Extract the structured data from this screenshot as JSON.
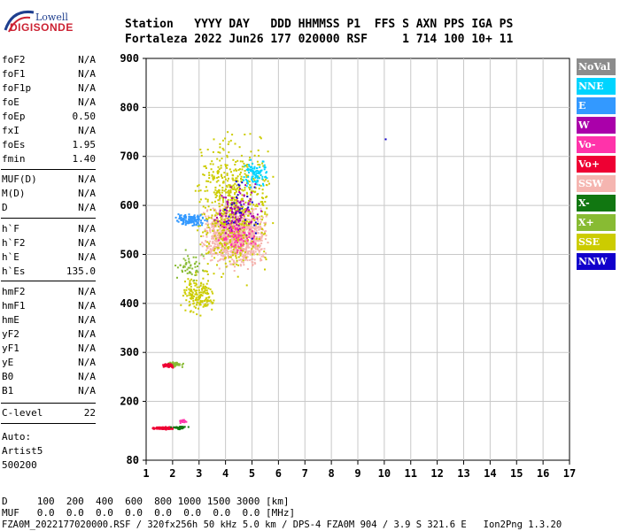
{
  "logo": {
    "top": "Lowell",
    "main": "DIGISONDE"
  },
  "header": {
    "line1": "Station   YYYY DAY   DDD HHMMSS P1  FFS S AXN PPS IGA PS",
    "line2": "Fortaleza 2022 Jun26 177 020000 RSF     1 714 100 10+ 11"
  },
  "params": [
    {
      "name": "foF2",
      "value": "N/A"
    },
    {
      "name": "foF1",
      "value": "N/A"
    },
    {
      "name": "foF1p",
      "value": "N/A"
    },
    {
      "name": "foE",
      "value": "N/A"
    },
    {
      "name": "foEp",
      "value": "0.50"
    },
    {
      "name": "fxI",
      "value": "N/A"
    },
    {
      "name": "foEs",
      "value": "1.95"
    },
    {
      "name": "fmin",
      "value": "1.40"
    },
    {
      "name": "MUF(D)",
      "value": "N/A"
    },
    {
      "name": "M(D)",
      "value": "N/A"
    },
    {
      "name": "D",
      "value": "N/A"
    },
    {
      "name": "h`F",
      "value": "N/A"
    },
    {
      "name": "h`F2",
      "value": "N/A"
    },
    {
      "name": "h`E",
      "value": "N/A"
    },
    {
      "name": "h`Es",
      "value": "135.0"
    },
    {
      "name": "hmF2",
      "value": "N/A"
    },
    {
      "name": "hmF1",
      "value": "N/A"
    },
    {
      "name": "hmE",
      "value": "N/A"
    },
    {
      "name": "yF2",
      "value": "N/A"
    },
    {
      "name": "yF1",
      "value": "N/A"
    },
    {
      "name": "yE",
      "value": "N/A"
    },
    {
      "name": "B0",
      "value": "N/A"
    },
    {
      "name": "B1",
      "value": "N/A"
    },
    {
      "name": "C-level",
      "value": "22"
    }
  ],
  "autoscale": {
    "line1": "Auto:",
    "line2": "Artist5",
    "line3": "500200"
  },
  "legend": [
    {
      "label": "NoVal",
      "color": "#8c8c8c"
    },
    {
      "label": "NNE",
      "color": "#00d4ff"
    },
    {
      "label": "E",
      "color": "#3399ff"
    },
    {
      "label": "W",
      "color": "#aa00aa"
    },
    {
      "label": "Vo-",
      "color": "#ff33aa"
    },
    {
      "label": "Vo+",
      "color": "#ee0033"
    },
    {
      "label": "SSW",
      "color": "#f5b5b0"
    },
    {
      "label": "X-",
      "color": "#117711"
    },
    {
      "label": "X+",
      "color": "#88bb33"
    },
    {
      "label": "SSE",
      "color": "#cccc00"
    },
    {
      "label": "NNW",
      "color": "#1100cc"
    }
  ],
  "chart_data": {
    "type": "scatter",
    "xlim": [
      1,
      17
    ],
    "ylim": [
      80,
      900
    ],
    "x_ticks": [
      1,
      2,
      3,
      4,
      5,
      6,
      7,
      8,
      9,
      10,
      11,
      12,
      13,
      14,
      15,
      16,
      17
    ],
    "y_ticks": [
      80,
      200,
      300,
      400,
      500,
      600,
      700,
      800,
      900
    ],
    "grid": true,
    "legend_position": "right",
    "echo_clusters": [
      {
        "mode": "SSW",
        "x_range": [
          3.0,
          5.6
        ],
        "y_range": [
          460,
          620
        ],
        "density": 1100
      },
      {
        "mode": "SSE",
        "x_range": [
          2.8,
          5.8
        ],
        "y_range": [
          420,
          780
        ],
        "density": 650
      },
      {
        "mode": "SSE",
        "x_range": [
          2.2,
          3.6
        ],
        "y_range": [
          370,
          470
        ],
        "density": 160
      },
      {
        "mode": "E",
        "x_range": [
          2.0,
          3.4
        ],
        "y_range": [
          555,
          590
        ],
        "density": 120
      },
      {
        "mode": "NNE",
        "x_range": [
          4.6,
          5.6
        ],
        "y_range": [
          630,
          700
        ],
        "density": 90
      },
      {
        "mode": "W",
        "x_range": [
          3.4,
          5.4
        ],
        "y_range": [
          520,
          660
        ],
        "density": 110
      },
      {
        "mode": "Vo-",
        "x_range": [
          3.6,
          5.2
        ],
        "y_range": [
          500,
          580
        ],
        "density": 70
      },
      {
        "mode": "NNW",
        "x_range": [
          3.8,
          5.4
        ],
        "y_range": [
          500,
          680
        ],
        "density": 30
      },
      {
        "mode": "X+",
        "x_range": [
          2.0,
          3.2
        ],
        "y_range": [
          440,
          520
        ],
        "density": 50
      },
      {
        "mode": "X+",
        "x_range": [
          1.7,
          2.4
        ],
        "y_range": [
          270,
          285
        ],
        "density": 40
      },
      {
        "mode": "Vo+",
        "x_range": [
          1.6,
          2.0
        ],
        "y_range": [
          270,
          280
        ],
        "density": 60
      },
      {
        "mode": "Vo+",
        "x_range": [
          1.2,
          2.0
        ],
        "y_range": [
          144,
          150
        ],
        "density": 150
      },
      {
        "mode": "X-",
        "x_range": [
          1.9,
          2.6
        ],
        "y_range": [
          144,
          152
        ],
        "density": 40
      },
      {
        "mode": "Vo-",
        "x_range": [
          2.2,
          2.5
        ],
        "y_range": [
          155,
          168
        ],
        "density": 15
      },
      {
        "mode": "NNW",
        "x_range": [
          9.95,
          10.05
        ],
        "y_range": [
          734,
          738
        ],
        "density": 1
      }
    ]
  },
  "bottom": {
    "d_line": "D     100  200  400  600  800 1000 1500 3000 [km]",
    "muf_line": "MUF   0.0  0.0  0.0  0.0  0.0  0.0  0.0  0.0 [MHz]",
    "footer": "FZA0M_2022177020000.RSF / 320fx256h 50 kHz 5.0 km / DPS-4 FZA0M 904 / 3.9 S 321.6 E   Ion2Png 1.3.20"
  }
}
